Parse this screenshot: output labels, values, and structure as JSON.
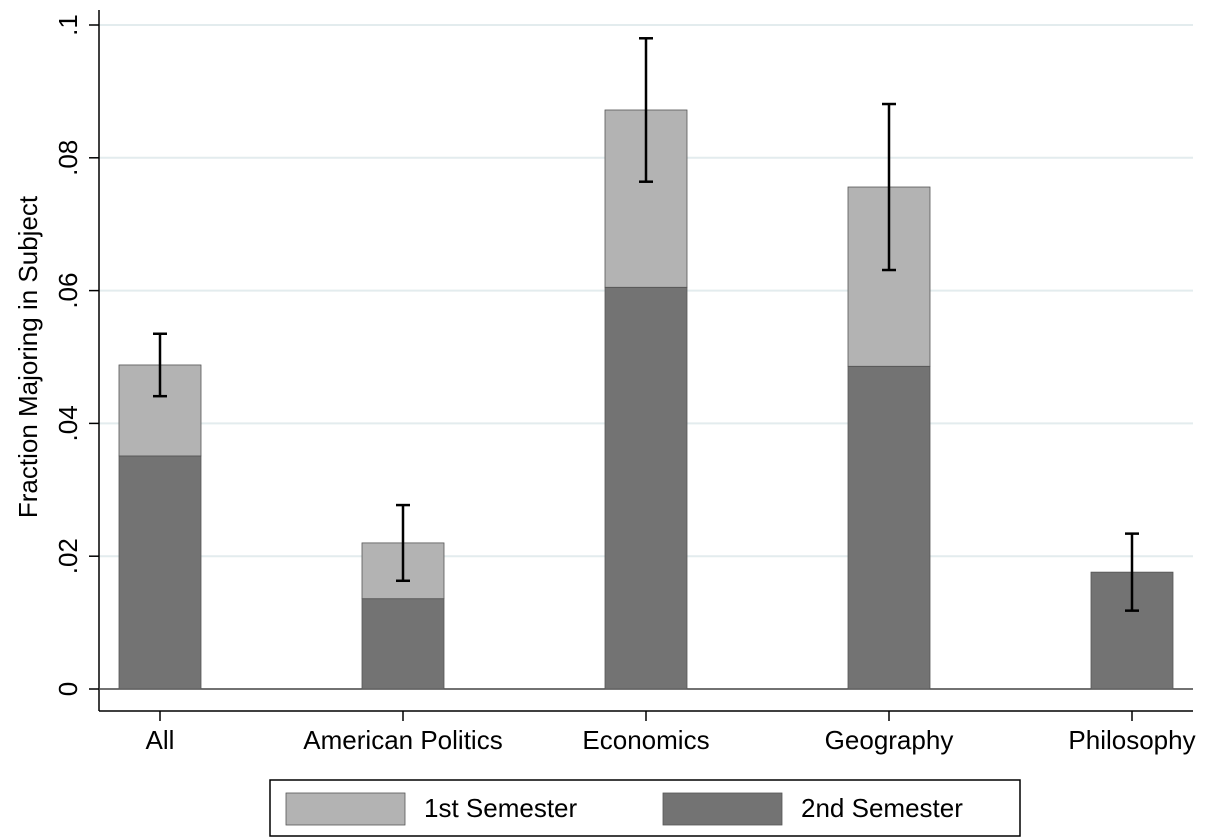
{
  "chart_data": {
    "type": "bar",
    "stacked": true,
    "y_label": "Fraction Majoring in Subject",
    "categories": [
      "All",
      "American Politics",
      "Economics",
      "Geography",
      "Philosophy"
    ],
    "series": [
      {
        "name": "2nd Semester",
        "color": "#737373",
        "values": [
          0.0351,
          0.0136,
          0.0605,
          0.0486,
          0.0176
        ]
      },
      {
        "name": "1st Semester",
        "color": "#b3b3b3",
        "values": [
          0.0137,
          0.0084,
          0.0267,
          0.027,
          0
        ]
      }
    ],
    "errors": [
      0.0047,
      0.0057,
      0.0108,
      0.0125,
      0.0058
    ],
    "ylim": [
      0,
      0.1
    ],
    "yticks": [
      0,
      {
        "value": 0.02,
        "label": ".02"
      },
      {
        "value": 0.04,
        "label": ".04"
      },
      {
        "value": 0.06,
        "label": ".06"
      },
      {
        "value": 0.08,
        "label": ".08"
      },
      {
        "value": 0.1,
        "label": ".1"
      }
    ],
    "grid": true,
    "legend_order": [
      1,
      0
    ]
  }
}
